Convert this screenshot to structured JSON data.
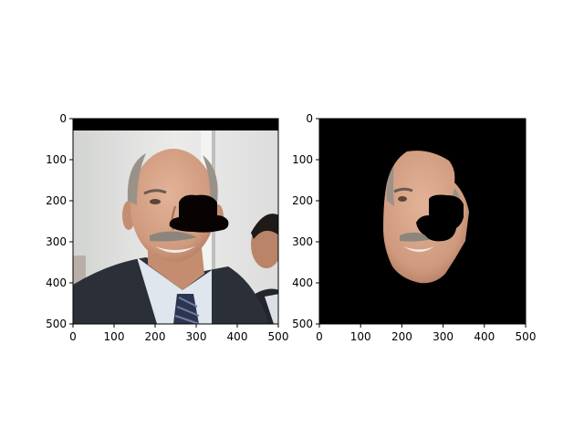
{
  "chart_data": [
    {
      "type": "image",
      "title": "",
      "xlabel": "",
      "ylabel": "",
      "xlim": [
        0,
        500
      ],
      "ylim": [
        500,
        0
      ],
      "xticks": [
        "0",
        "100",
        "200",
        "300",
        "400",
        "500"
      ],
      "yticks": [
        "0",
        "100",
        "200",
        "300",
        "400",
        "500"
      ],
      "content": "photo-portrait-with-occlusion"
    },
    {
      "type": "image",
      "title": "",
      "xlabel": "",
      "ylabel": "",
      "xlim": [
        0,
        500
      ],
      "ylim": [
        500,
        0
      ],
      "xticks": [
        "0",
        "100",
        "200",
        "300",
        "400",
        "500"
      ],
      "yticks": [
        "0",
        "100",
        "200",
        "300",
        "400",
        "500"
      ],
      "content": "segmented-face-on-black"
    }
  ],
  "colors": {
    "background": "#ffffff",
    "mask": "#000000",
    "occluder": "#080202",
    "wall": "#e4e4e2",
    "skin": "#d7a487",
    "hair": "#9a9288",
    "suit": "#2a2f38",
    "shirt": "#dfe6ee"
  }
}
